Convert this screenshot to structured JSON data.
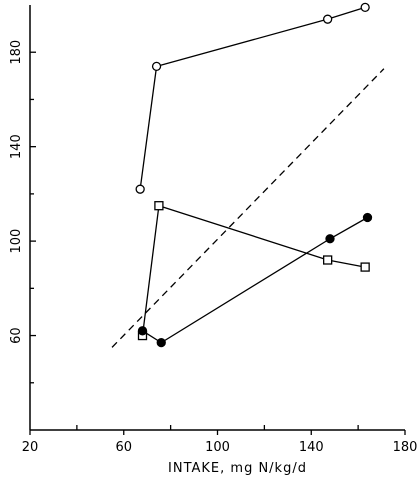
{
  "chart_data": {
    "type": "line",
    "title": "",
    "xlabel": "INTAKE, mg N/kg/d",
    "ylabel": "",
    "xlim": [
      20,
      180
    ],
    "ylim": [
      20,
      200
    ],
    "x_ticks_labeled": [
      20,
      60,
      100,
      140,
      180
    ],
    "y_ticks_labeled": [
      60,
      100,
      140,
      180
    ],
    "x_minor_ticks": [
      40,
      80,
      120,
      160
    ],
    "y_minor_ticks": [
      40,
      80,
      120,
      160
    ],
    "grid": false,
    "series": [
      {
        "marker": "open-circle",
        "x": [
          67,
          74,
          147,
          163
        ],
        "y": [
          122,
          174,
          194,
          199
        ]
      },
      {
        "marker": "open-square",
        "x": [
          68,
          75,
          147,
          163
        ],
        "y": [
          60,
          115,
          92,
          89
        ]
      },
      {
        "marker": "filled-circle",
        "x": [
          68,
          76,
          148,
          164
        ],
        "y": [
          62,
          57,
          101,
          110
        ]
      },
      {
        "marker": "none",
        "style": "dashed",
        "x": [
          55,
          171
        ],
        "y": [
          55,
          173
        ]
      }
    ]
  }
}
